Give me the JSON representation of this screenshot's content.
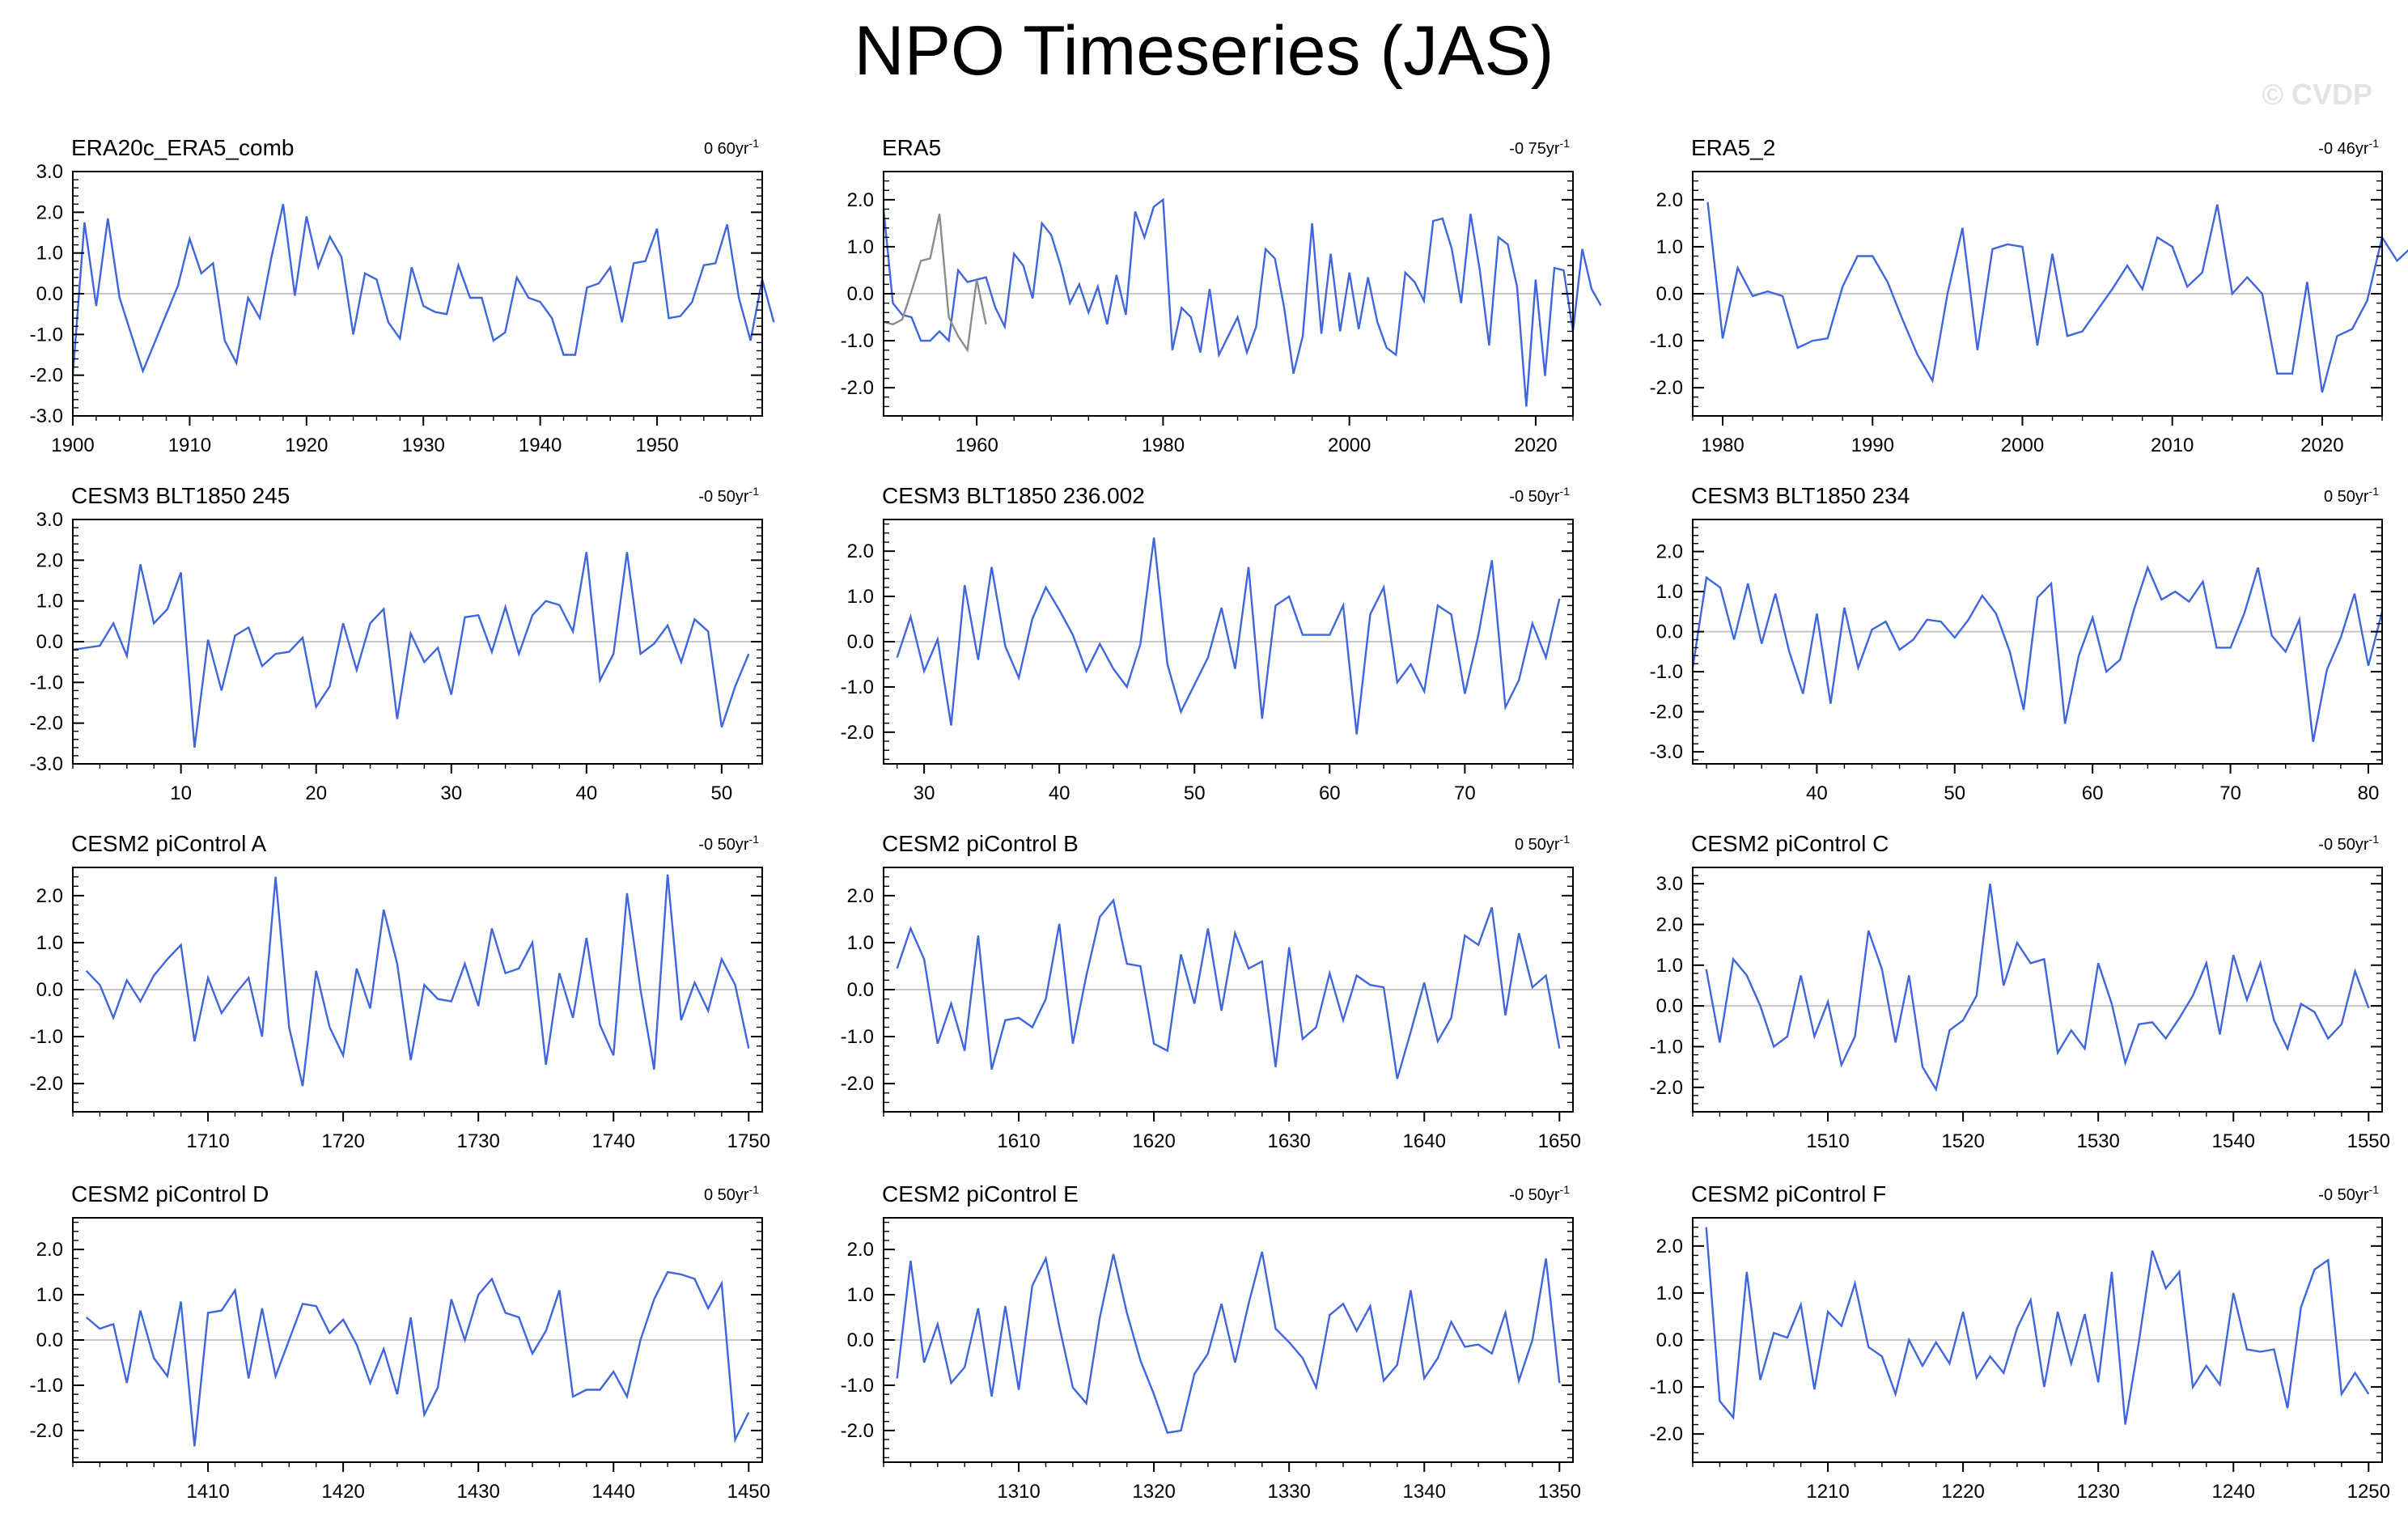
{
  "title": "NPO Timeseries (JAS)",
  "watermark": "© CVDP",
  "colors": {
    "line": "#3f66dd",
    "obs_overlay": "#8c8c8c",
    "zero_line": "#c8c8c8"
  },
  "chart_data": [
    {
      "type": "line",
      "title": "ERA20c_ERA5_comb",
      "trend": "0 60yr",
      "trend_unit_sup": "-1",
      "xlim": [
        1900,
        1959
      ],
      "ylim": [
        -3.0,
        3.0
      ],
      "xticks": [
        1900,
        1910,
        1920,
        1930,
        1940,
        1950
      ],
      "yticks": [
        -3.0,
        -2.0,
        -1.0,
        0.0,
        1.0,
        2.0,
        3.0
      ],
      "x_start": 1900,
      "series": [
        {
          "values": [
            -2.0,
            1.75,
            -0.3,
            1.85,
            -0.1,
            -1.0,
            -1.9,
            -1.2,
            -0.5,
            0.2,
            1.35,
            0.5,
            0.75,
            -1.15,
            -1.7,
            -0.1,
            -0.6,
            0.9,
            2.2,
            -0.05,
            1.9,
            0.65,
            1.4,
            0.9,
            -1.0,
            0.5,
            0.35,
            -0.7,
            -1.1,
            0.65,
            -0.3,
            -0.45,
            -0.5,
            0.7,
            -0.1,
            -0.1,
            -1.15,
            -0.95,
            0.4,
            -0.1,
            -0.2,
            -0.6,
            -1.5,
            -1.5,
            0.15,
            0.25,
            0.65,
            -0.7,
            0.75,
            0.8,
            1.6,
            -0.6,
            -0.55,
            -0.2,
            0.7,
            0.75,
            1.7,
            -0.1,
            -1.15,
            0.35,
            -0.7
          ]
        }
      ]
    },
    {
      "type": "line",
      "title": "ERA5",
      "trend": "-0 75yr",
      "trend_unit_sup": "-1",
      "xlim": [
        1950,
        2024
      ],
      "ylim": [
        -2.6,
        2.6
      ],
      "xticks": [
        1960,
        1980,
        2000,
        2020
      ],
      "yticks": [
        -2.0,
        -1.0,
        0.0,
        1.0,
        2.0
      ],
      "x_start": 1950,
      "series": [
        {
          "values": [
            1.8,
            -0.2,
            -0.45,
            -0.5,
            -1.0,
            -1.0,
            -0.8,
            -1.0,
            0.5,
            0.25,
            0.3,
            0.35,
            -0.3,
            -0.7,
            0.85,
            0.6,
            -0.1,
            1.5,
            1.25,
            0.6,
            -0.2,
            0.2,
            -0.4,
            0.15,
            -0.65,
            0.4,
            -0.45,
            1.75,
            1.2,
            1.85,
            2.0,
            -1.2,
            -0.3,
            -0.5,
            -1.25,
            0.1,
            -1.3,
            -0.9,
            -0.5,
            -1.25,
            -0.7,
            0.95,
            0.75,
            -0.3,
            -1.7,
            -0.9,
            1.5,
            -0.85,
            0.85,
            -0.8,
            0.45,
            -0.75,
            0.35,
            -0.6,
            -1.15,
            -1.3,
            0.45,
            0.25,
            -0.15,
            1.55,
            1.6,
            0.95,
            -0.2,
            1.7,
            0.5,
            -1.1,
            1.2,
            1.05,
            0.15,
            -2.4,
            0.3,
            -1.75,
            0.55,
            0.5,
            -0.8,
            0.95,
            0.1,
            -0.25
          ]
        },
        {
          "name": "",
          "color_key": "obs_overlay",
          "values": [
            -0.6,
            -0.65,
            -0.55,
            0.05,
            0.7,
            0.75,
            1.7,
            -0.5,
            -0.9,
            -1.2,
            0.3,
            -0.65
          ]
        }
      ]
    },
    {
      "type": "line",
      "title": "ERA5_2",
      "trend": "-0 46yr",
      "trend_unit_sup": "-1",
      "xlim": [
        1978,
        2024
      ],
      "ylim": [
        -2.6,
        2.6
      ],
      "xticks": [
        1980,
        1990,
        2000,
        2010,
        2020
      ],
      "yticks": [
        -2.0,
        -1.0,
        0.0,
        1.0,
        2.0
      ],
      "x_start": 1979,
      "series": [
        {
          "values": [
            1.95,
            -0.95,
            0.55,
            -0.05,
            0.05,
            -0.05,
            -1.15,
            -1.0,
            -0.95,
            0.15,
            0.8,
            0.8,
            0.25,
            -0.55,
            -1.3,
            -1.85,
            0.0,
            1.4,
            -1.2,
            0.95,
            1.05,
            1.0,
            -1.1,
            0.85,
            -0.9,
            -0.8,
            -0.35,
            0.1,
            0.6,
            0.1,
            1.2,
            1.0,
            0.15,
            0.45,
            1.9,
            0.0,
            0.35,
            0.0,
            -1.7,
            -1.7,
            0.25,
            -2.1,
            -0.9,
            -0.75,
            -0.15,
            1.2,
            0.7,
            1.0
          ]
        }
      ]
    },
    {
      "type": "line",
      "title": "CESM3 BLT1850 245",
      "trend": "-0 50yr",
      "trend_unit_sup": "-1",
      "xlim": [
        2,
        53
      ],
      "ylim": [
        -3.0,
        3.0
      ],
      "xticks": [
        10,
        20,
        30,
        40,
        50
      ],
      "yticks": [
        -3.0,
        -2.0,
        -1.0,
        0.0,
        1.0,
        2.0,
        3.0
      ],
      "x_start": 2,
      "series": [
        {
          "values": [
            -0.2,
            -0.15,
            -0.1,
            0.45,
            -0.35,
            1.9,
            0.45,
            0.8,
            1.7,
            -2.6,
            0.05,
            -1.2,
            0.15,
            0.35,
            -0.6,
            -0.3,
            -0.25,
            0.1,
            -1.6,
            -1.1,
            0.45,
            -0.7,
            0.45,
            0.8,
            -1.9,
            0.2,
            -0.5,
            -0.15,
            -1.3,
            0.6,
            0.65,
            -0.25,
            0.85,
            -0.3,
            0.65,
            1.0,
            0.9,
            0.25,
            2.2,
            -0.95,
            -0.3,
            2.2,
            -0.3,
            -0.05,
            0.4,
            -0.5,
            0.55,
            0.25,
            -2.1,
            -1.1,
            -0.3
          ]
        }
      ]
    },
    {
      "type": "line",
      "title": "CESM3 BLT1850 236.002",
      "trend": "-0 50yr",
      "trend_unit_sup": "-1",
      "xlim": [
        27,
        78
      ],
      "ylim": [
        -2.7,
        2.7
      ],
      "xticks": [
        30,
        40,
        50,
        60,
        70
      ],
      "yticks": [
        -2.0,
        -1.0,
        0.0,
        1.0,
        2.0
      ],
      "x_start": 28,
      "series": [
        {
          "values": [
            -0.35,
            0.55,
            -0.65,
            0.05,
            -1.85,
            1.25,
            -0.4,
            1.65,
            -0.1,
            -0.8,
            0.5,
            1.2,
            0.7,
            0.15,
            -0.65,
            -0.05,
            -0.6,
            -1.0,
            -0.05,
            2.3,
            -0.5,
            -1.55,
            -0.95,
            -0.35,
            0.75,
            -0.6,
            1.65,
            -1.7,
            0.8,
            1.0,
            0.15,
            0.15,
            0.15,
            0.8,
            -2.05,
            0.6,
            1.2,
            -0.9,
            -0.5,
            -1.1,
            0.8,
            0.6,
            -1.15,
            0.15,
            1.8,
            -1.45,
            -0.85,
            0.4,
            -0.35,
            0.95
          ]
        }
      ]
    },
    {
      "type": "line",
      "title": "CESM3 BLT1850 234",
      "trend": "0 50yr",
      "trend_unit_sup": "-1",
      "xlim": [
        31,
        81
      ],
      "ylim": [
        -3.3,
        2.8
      ],
      "xticks": [
        40,
        50,
        60,
        70,
        80
      ],
      "yticks": [
        -3.0,
        -2.0,
        -1.0,
        0.0,
        1.0,
        2.0
      ],
      "x_start": 31,
      "series": [
        {
          "values": [
            -0.9,
            1.35,
            1.1,
            -0.2,
            1.2,
            -0.3,
            0.95,
            -0.5,
            -1.55,
            0.45,
            -1.8,
            0.6,
            -0.9,
            0.05,
            0.25,
            -0.45,
            -0.2,
            0.3,
            0.25,
            -0.15,
            0.3,
            0.9,
            0.45,
            -0.5,
            -1.95,
            0.85,
            1.2,
            -2.3,
            -0.6,
            0.35,
            -1.0,
            -0.7,
            0.55,
            1.6,
            0.8,
            1.0,
            0.75,
            1.25,
            -0.4,
            -0.4,
            0.45,
            1.6,
            -0.1,
            -0.5,
            0.3,
            -2.75,
            -0.95,
            -0.15,
            0.95,
            -0.85,
            0.5
          ]
        }
      ]
    },
    {
      "type": "line",
      "title": "CESM2 piControl A",
      "trend": "-0 50yr",
      "trend_unit_sup": "-1",
      "xlim": [
        1700,
        1751
      ],
      "ylim": [
        -2.6,
        2.6
      ],
      "xticks": [
        1710,
        1720,
        1730,
        1740,
        1750
      ],
      "yticks": [
        -2.0,
        -1.0,
        0.0,
        1.0,
        2.0
      ],
      "x_start": 1701,
      "series": [
        {
          "values": [
            0.4,
            0.1,
            -0.6,
            0.2,
            -0.25,
            0.3,
            0.65,
            0.95,
            -1.1,
            0.25,
            -0.5,
            -0.1,
            0.25,
            -1.0,
            2.4,
            -0.8,
            -2.05,
            0.4,
            -0.8,
            -1.4,
            0.45,
            -0.4,
            1.7,
            0.55,
            -1.5,
            0.1,
            -0.2,
            -0.25,
            0.55,
            -0.35,
            1.3,
            0.35,
            0.45,
            1.0,
            -1.6,
            0.35,
            -0.6,
            1.1,
            -0.75,
            -1.4,
            2.05,
            0.0,
            -1.7,
            2.45,
            -0.65,
            0.15,
            -0.45,
            0.65,
            0.1,
            -1.25
          ]
        }
      ]
    },
    {
      "type": "line",
      "title": "CESM2 piControl B",
      "trend": "0 50yr",
      "trend_unit_sup": "-1",
      "xlim": [
        1600,
        1651
      ],
      "ylim": [
        -2.6,
        2.6
      ],
      "xticks": [
        1610,
        1620,
        1630,
        1640,
        1650
      ],
      "yticks": [
        -2.0,
        -1.0,
        0.0,
        1.0,
        2.0
      ],
      "x_start": 1601,
      "series": [
        {
          "values": [
            0.45,
            1.3,
            0.65,
            -1.15,
            -0.3,
            -1.3,
            1.15,
            -1.7,
            -0.65,
            -0.6,
            -0.8,
            -0.2,
            1.4,
            -1.15,
            0.3,
            1.55,
            1.9,
            0.55,
            0.5,
            -1.15,
            -1.3,
            0.75,
            -0.3,
            1.3,
            -0.45,
            1.2,
            0.45,
            0.6,
            -1.65,
            0.9,
            -1.05,
            -0.8,
            0.35,
            -0.65,
            0.3,
            0.1,
            0.05,
            -1.9,
            -0.9,
            0.15,
            -1.1,
            -0.6,
            1.15,
            0.95,
            1.75,
            -0.55,
            1.2,
            0.05,
            0.3,
            -1.25
          ]
        }
      ]
    },
    {
      "type": "line",
      "title": "CESM2 piControl C",
      "trend": "-0 50yr",
      "trend_unit_sup": "-1",
      "xlim": [
        1500,
        1551
      ],
      "ylim": [
        -2.6,
        3.4
      ],
      "xticks": [
        1510,
        1520,
        1530,
        1540,
        1550
      ],
      "yticks": [
        -2.0,
        -1.0,
        0.0,
        1.0,
        2.0,
        3.0
      ],
      "x_start": 1501,
      "series": [
        {
          "values": [
            0.9,
            -0.9,
            1.15,
            0.75,
            0.0,
            -1.0,
            -0.75,
            0.75,
            -0.75,
            0.1,
            -1.45,
            -0.75,
            1.85,
            0.9,
            -0.9,
            0.75,
            -1.5,
            -2.05,
            -0.6,
            -0.35,
            0.25,
            3.0,
            0.5,
            1.55,
            1.05,
            1.15,
            -1.15,
            -0.6,
            -1.05,
            1.05,
            0.05,
            -1.4,
            -0.45,
            -0.4,
            -0.8,
            -0.3,
            0.25,
            1.05,
            -0.7,
            1.25,
            0.15,
            1.05,
            -0.35,
            -1.05,
            0.05,
            -0.15,
            -0.8,
            -0.45,
            0.85,
            -0.05
          ]
        }
      ]
    },
    {
      "type": "line",
      "title": "CESM2 piControl D",
      "trend": "0 50yr",
      "trend_unit_sup": "-1",
      "xlim": [
        1400,
        1451
      ],
      "ylim": [
        -2.7,
        2.7
      ],
      "xticks": [
        1410,
        1420,
        1430,
        1440,
        1450
      ],
      "yticks": [
        -2.0,
        -1.0,
        0.0,
        1.0,
        2.0
      ],
      "x_start": 1401,
      "series": [
        {
          "values": [
            0.5,
            0.25,
            0.35,
            -0.95,
            0.65,
            -0.4,
            -0.8,
            0.85,
            -2.35,
            0.6,
            0.65,
            1.1,
            -0.85,
            0.7,
            -0.8,
            0.0,
            0.8,
            0.75,
            0.15,
            0.45,
            -0.1,
            -0.95,
            -0.2,
            -1.2,
            0.5,
            -1.65,
            -1.05,
            0.9,
            0.0,
            1.0,
            1.35,
            0.6,
            0.5,
            -0.3,
            0.2,
            1.1,
            -1.25,
            -1.1,
            -1.1,
            -0.7,
            -1.25,
            0.0,
            0.9,
            1.5,
            1.45,
            1.35,
            0.7,
            1.25,
            -2.2,
            -1.6
          ]
        }
      ]
    },
    {
      "type": "line",
      "title": "CESM2 piControl E",
      "trend": "-0 50yr",
      "trend_unit_sup": "-1",
      "xlim": [
        1300,
        1351
      ],
      "ylim": [
        -2.7,
        2.7
      ],
      "xticks": [
        1310,
        1320,
        1330,
        1340,
        1350
      ],
      "yticks": [
        -2.0,
        -1.0,
        0.0,
        1.0,
        2.0
      ],
      "x_start": 1301,
      "series": [
        {
          "values": [
            -0.85,
            1.75,
            -0.5,
            0.35,
            -0.95,
            -0.6,
            0.7,
            -1.25,
            0.75,
            -1.1,
            1.2,
            1.8,
            0.3,
            -1.05,
            -1.4,
            0.5,
            1.9,
            0.6,
            -0.45,
            -1.2,
            -2.05,
            -2.0,
            -0.75,
            -0.3,
            0.8,
            -0.5,
            0.8,
            1.95,
            0.25,
            -0.05,
            -0.4,
            -1.05,
            0.55,
            0.8,
            0.2,
            0.75,
            -0.9,
            -0.55,
            1.1,
            -0.85,
            -0.4,
            0.4,
            -0.15,
            -0.1,
            -0.3,
            0.6,
            -0.9,
            0.0,
            1.8,
            -0.95
          ]
        }
      ]
    },
    {
      "type": "line",
      "title": "CESM2 piControl F",
      "trend": "-0 50yr",
      "trend_unit_sup": "-1",
      "xlim": [
        1200,
        1251
      ],
      "ylim": [
        -2.6,
        2.6
      ],
      "xticks": [
        1210,
        1220,
        1230,
        1240,
        1250
      ],
      "yticks": [
        -2.0,
        -1.0,
        0.0,
        1.0,
        2.0
      ],
      "x_start": 1201,
      "series": [
        {
          "values": [
            2.4,
            -1.3,
            -1.65,
            1.45,
            -0.85,
            0.15,
            0.05,
            0.75,
            -1.05,
            0.6,
            0.3,
            1.2,
            -0.15,
            -0.35,
            -1.15,
            0.0,
            -0.55,
            -0.05,
            -0.5,
            0.6,
            -0.8,
            -0.35,
            -0.7,
            0.25,
            0.85,
            -1.0,
            0.6,
            -0.5,
            0.55,
            -0.9,
            1.45,
            -1.8,
            -0.05,
            1.9,
            1.1,
            1.45,
            -1.0,
            -0.55,
            -0.95,
            1.0,
            -0.2,
            -0.25,
            -0.2,
            -1.45,
            0.7,
            1.5,
            1.7,
            -1.15,
            -0.7,
            -1.15
          ]
        }
      ]
    }
  ]
}
